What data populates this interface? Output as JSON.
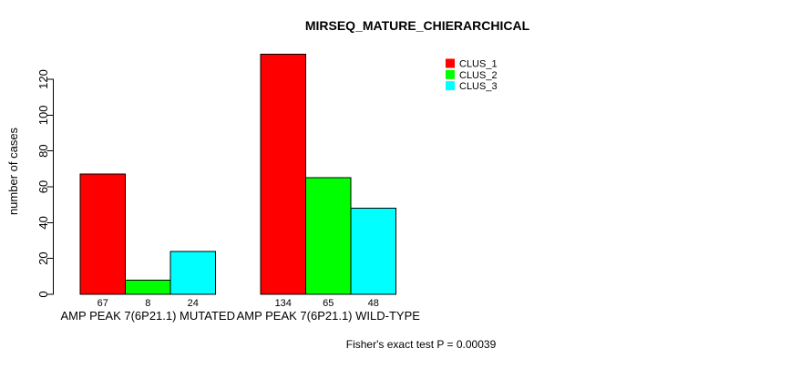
{
  "chart_data": {
    "type": "bar",
    "title": "MIRSEQ_MATURE_CHIERARCHICAL",
    "ylabel": "number of cases",
    "xlabel": "",
    "categories": [
      "AMP PEAK 7(6P21.1) MUTATED",
      "AMP PEAK 7(6P21.1) WILD-TYPE"
    ],
    "series": [
      {
        "name": "CLUS_1",
        "color": "#ff0000",
        "values": [
          67,
          134
        ]
      },
      {
        "name": "CLUS_2",
        "color": "#00ff00",
        "values": [
          8,
          65
        ]
      },
      {
        "name": "CLUS_3",
        "color": "#00ffff",
        "values": [
          24,
          48
        ]
      }
    ],
    "bar_value_labels": [
      [
        67,
        8,
        24
      ],
      [
        134,
        65,
        48
      ]
    ],
    "y_ticks": [
      0,
      20,
      40,
      60,
      80,
      100,
      120
    ],
    "ylim": [
      0,
      134
    ],
    "grid": false,
    "legend_position": "top-right",
    "legend_entries": [
      "CLUS_1",
      "CLUS_2",
      "CLUS_3"
    ],
    "annotation": "Fisher's exact test P = 0.00039"
  },
  "colors": {
    "background": "#ffffff",
    "axis": "#000000",
    "text": "#000000",
    "bar_border": "#000000"
  }
}
